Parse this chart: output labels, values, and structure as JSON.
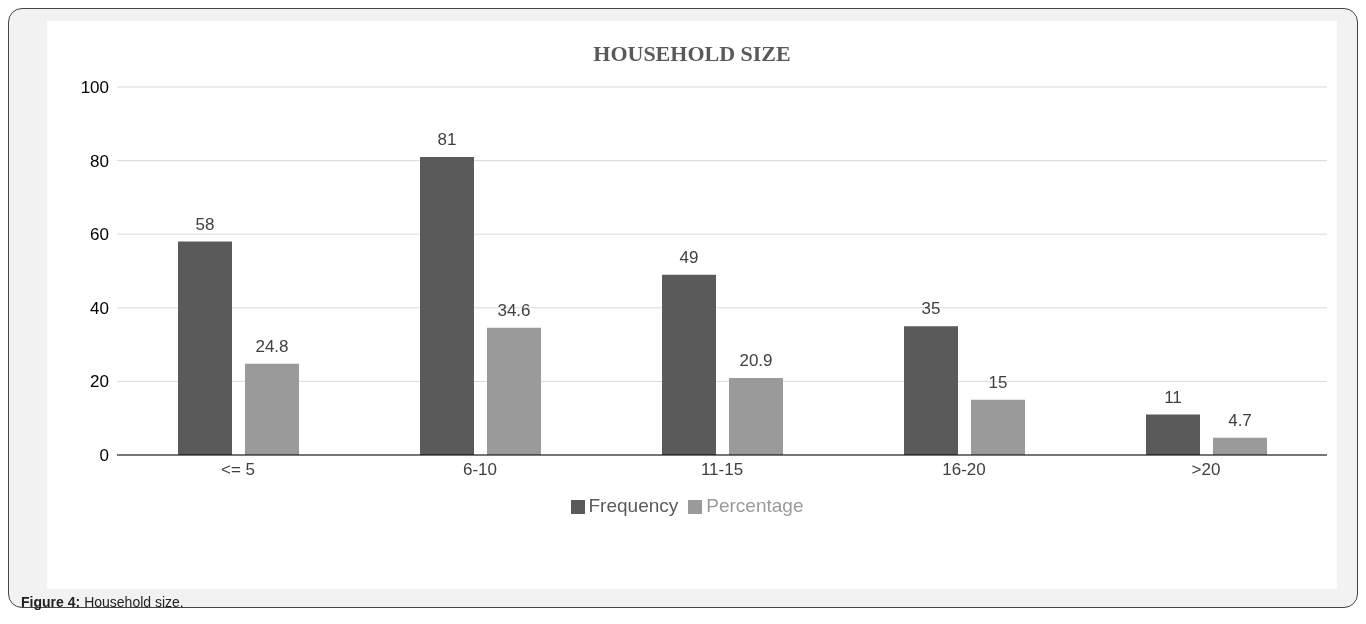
{
  "chart_data": {
    "type": "bar",
    "title": "HOUSEHOLD SIZE",
    "categories": [
      "<= 5",
      "6-10",
      "11-15",
      "16-20",
      ">20"
    ],
    "series": [
      {
        "name": "Frequency",
        "color": "#5a5a5a",
        "values": [
          58,
          81,
          49,
          35,
          11
        ]
      },
      {
        "name": "Percentage",
        "color": "#9a9a9a",
        "values": [
          24.8,
          34.6,
          20.9,
          15,
          4.7
        ]
      }
    ],
    "ylim": [
      0,
      100
    ],
    "yticks": [
      0,
      20,
      40,
      60,
      80,
      100
    ],
    "grid": "y",
    "legend": "bottom",
    "data_labels": true,
    "annotations": [
      "Figure 4:",
      "Household size."
    ]
  }
}
